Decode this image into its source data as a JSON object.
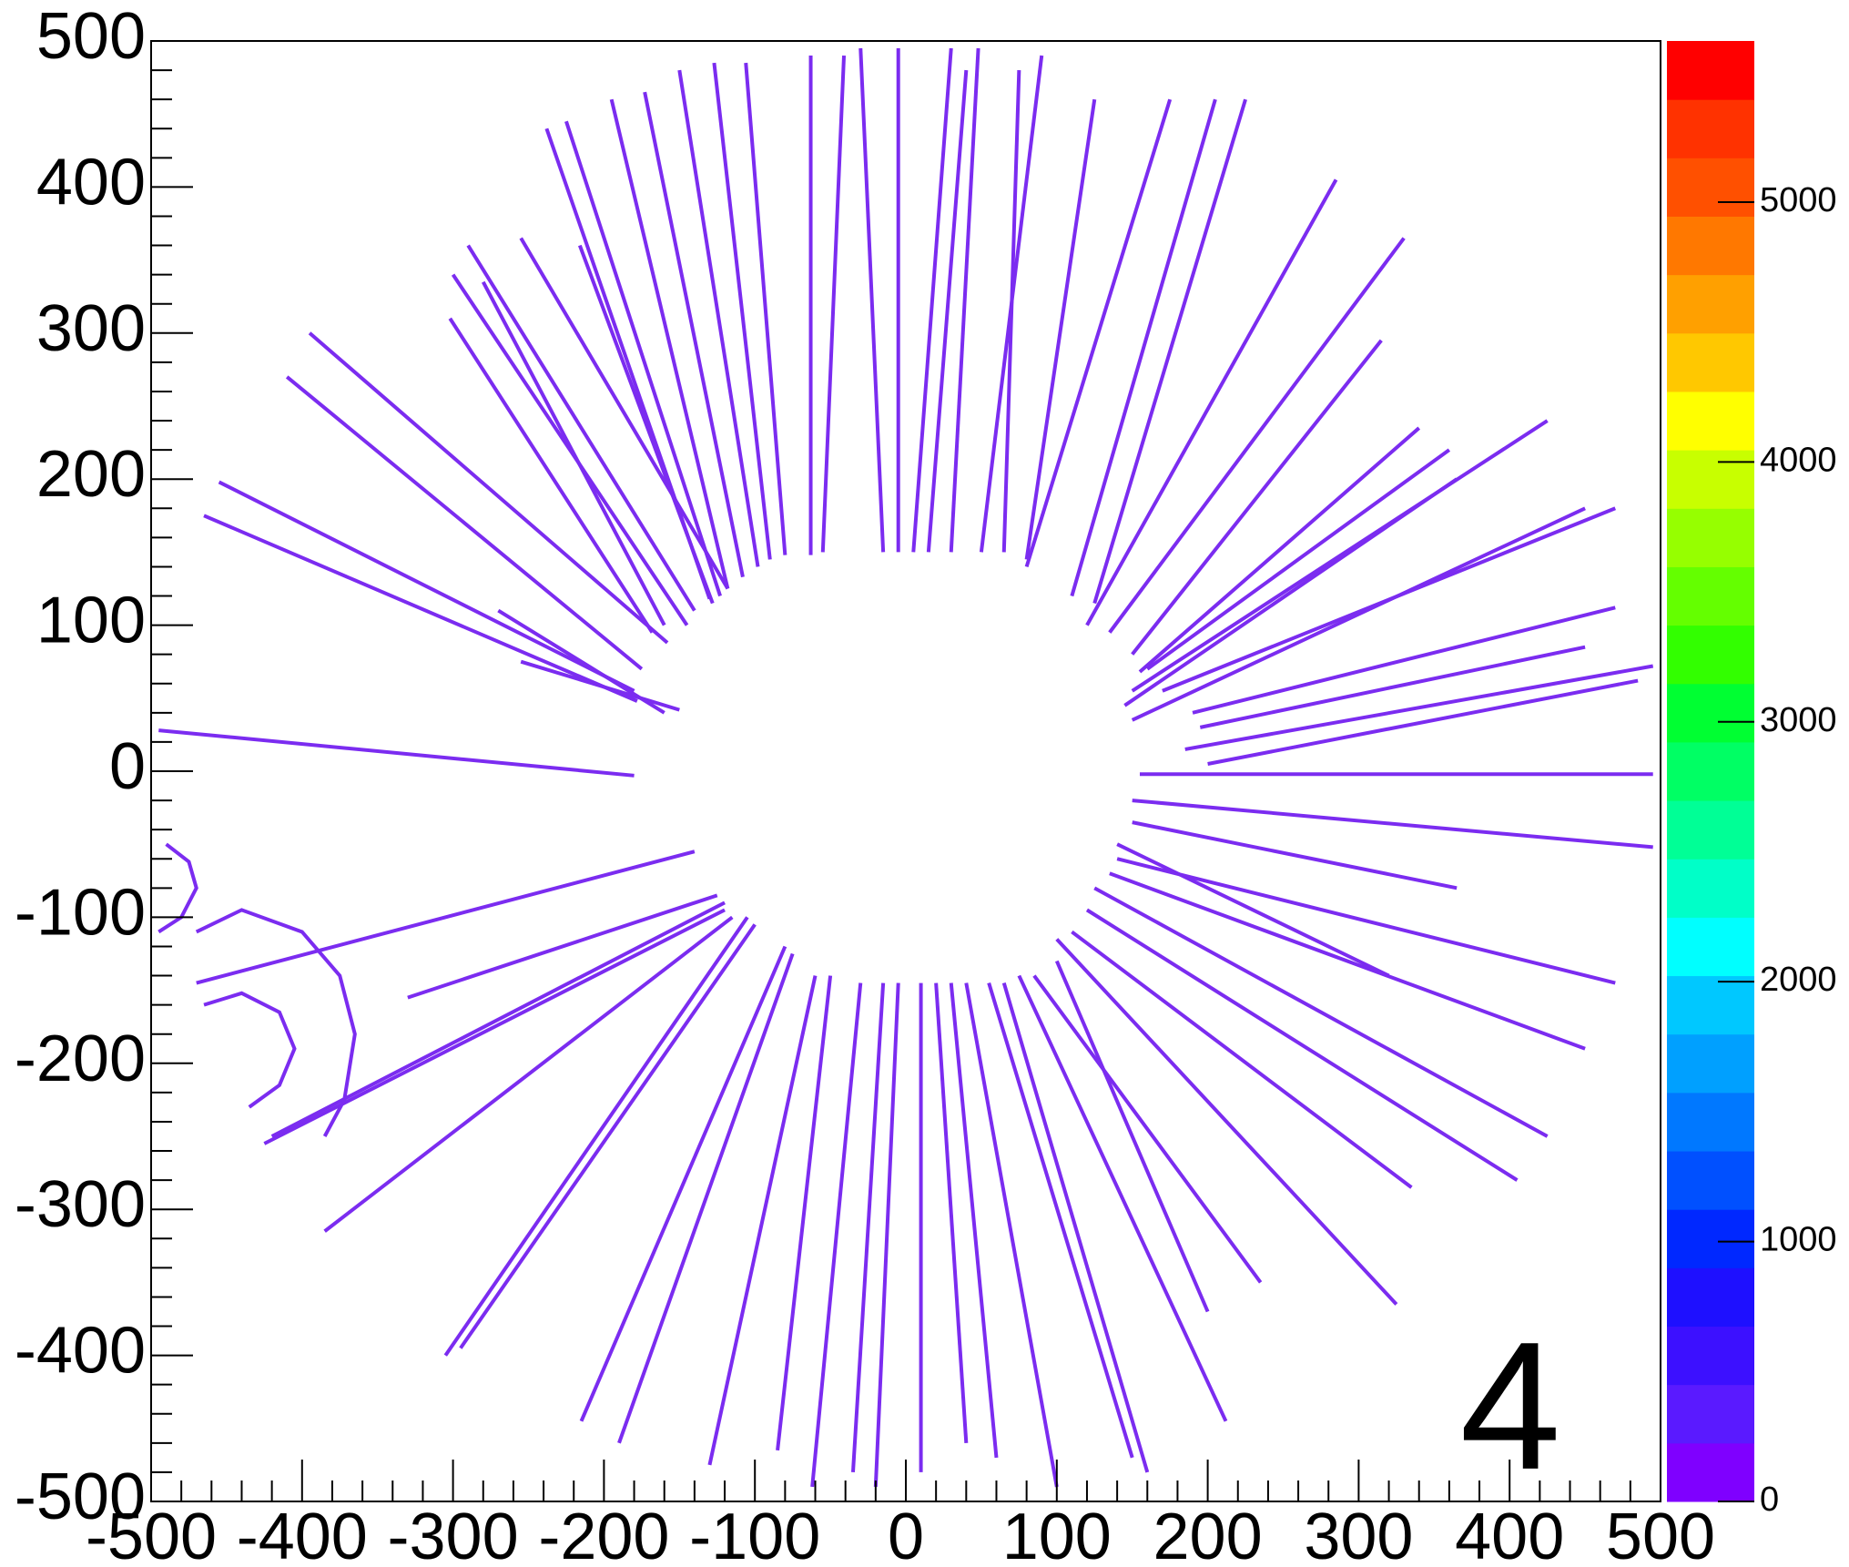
{
  "chart_data": {
    "type": "hist2d",
    "annotation": "4",
    "xlim": [
      -500,
      500
    ],
    "ylim": [
      -500,
      500
    ],
    "xticks": [
      -500,
      -400,
      -300,
      -200,
      -100,
      0,
      100,
      200,
      300,
      400,
      500
    ],
    "yticks": [
      -500,
      -400,
      -300,
      -200,
      -100,
      0,
      100,
      200,
      300,
      400,
      500
    ],
    "zlim": [
      0,
      5620
    ],
    "zticks": [
      0,
      1000,
      2000,
      3000,
      4000,
      5000
    ],
    "color": "#7b2cf0",
    "palette": [
      "#7f00ff",
      "#5a1aff",
      "#3c10ff",
      "#1e10ff",
      "#0028ff",
      "#0050ff",
      "#0078ff",
      "#00a0ff",
      "#00c8ff",
      "#00ffff",
      "#00ffc8",
      "#00ff96",
      "#00ff64",
      "#00ff32",
      "#32ff00",
      "#64ff00",
      "#96ff00",
      "#c8ff00",
      "#ffff00",
      "#ffc800",
      "#ffa000",
      "#ff7800",
      "#ff5000",
      "#ff3200",
      "#ff0000"
    ],
    "tracks": [
      {
        "x": [
          -63,
          -63
        ],
        "y": [
          148,
          490
        ]
      },
      {
        "x": [
          -55,
          -41
        ],
        "y": [
          150,
          490
        ]
      },
      {
        "x": [
          -80,
          -106
        ],
        "y": [
          148,
          485
        ]
      },
      {
        "x": [
          -90,
          -127
        ],
        "y": [
          145,
          485
        ]
      },
      {
        "x": [
          -98,
          -150
        ],
        "y": [
          140,
          480
        ]
      },
      {
        "x": [
          -108,
          -173
        ],
        "y": [
          133,
          465
        ]
      },
      {
        "x": [
          -118,
          -195
        ],
        "y": [
          125,
          460
        ]
      },
      {
        "x": [
          -123,
          -225
        ],
        "y": [
          120,
          445
        ]
      },
      {
        "x": [
          -130,
          -238
        ],
        "y": [
          118,
          440
        ]
      },
      {
        "x": [
          -128,
          -216
        ],
        "y": [
          115,
          360
        ]
      },
      {
        "x": [
          -118,
          -255
        ],
        "y": [
          125,
          365
        ]
      },
      {
        "x": [
          -140,
          -290
        ],
        "y": [
          110,
          360
        ]
      },
      {
        "x": [
          -145,
          -300
        ],
        "y": [
          100,
          340
        ]
      },
      {
        "x": [
          -160,
          -280
        ],
        "y": [
          100,
          335
        ]
      },
      {
        "x": [
          -168,
          -302
        ],
        "y": [
          95,
          310
        ]
      },
      {
        "x": [
          -158,
          -395
        ],
        "y": [
          88,
          300
        ]
      },
      {
        "x": [
          -175,
          -410
        ],
        "y": [
          70,
          270
        ]
      },
      {
        "x": [
          -180,
          -455
        ],
        "y": [
          55,
          198
        ]
      },
      {
        "x": [
          -178,
          -465
        ],
        "y": [
          48,
          175
        ]
      },
      {
        "x": [
          -160,
          -270
        ],
        "y": [
          40,
          110
        ]
      },
      {
        "x": [
          -150,
          -255
        ],
        "y": [
          42,
          75
        ]
      },
      {
        "x": [
          -180,
          -495
        ],
        "y": [
          -3,
          28
        ]
      },
      {
        "x": [
          -15,
          -30
        ],
        "y": [
          150,
          495
        ]
      },
      {
        "x": [
          -5,
          -5
        ],
        "y": [
          150,
          495
        ]
      },
      {
        "x": [
          5,
          30
        ],
        "y": [
          150,
          495
        ]
      },
      {
        "x": [
          15,
          40
        ],
        "y": [
          150,
          480
        ]
      },
      {
        "x": [
          30,
          48
        ],
        "y": [
          150,
          495
        ]
      },
      {
        "x": [
          50,
          90
        ],
        "y": [
          150,
          490
        ]
      },
      {
        "x": [
          65,
          75
        ],
        "y": [
          150,
          480
        ]
      },
      {
        "x": [
          80,
          125
        ],
        "y": [
          145,
          460
        ]
      },
      {
        "x": [
          80,
          175
        ],
        "y": [
          140,
          460
        ]
      },
      {
        "x": [
          110,
          205
        ],
        "y": [
          120,
          460
        ]
      },
      {
        "x": [
          125,
          225
        ],
        "y": [
          115,
          460
        ]
      },
      {
        "x": [
          120,
          285
        ],
        "y": [
          100,
          405
        ]
      },
      {
        "x": [
          135,
          330
        ],
        "y": [
          95,
          365
        ]
      },
      {
        "x": [
          150,
          315
        ],
        "y": [
          80,
          295
        ]
      },
      {
        "x": [
          155,
          340
        ],
        "y": [
          68,
          235
        ]
      },
      {
        "x": [
          145,
          365
        ],
        "y": [
          45,
          200
        ]
      },
      {
        "x": [
          150,
          425
        ],
        "y": [
          55,
          240
        ]
      },
      {
        "x": [
          160,
          360
        ],
        "y": [
          70,
          220
        ]
      },
      {
        "x": [
          150,
          450
        ],
        "y": [
          35,
          180
        ]
      },
      {
        "x": [
          170,
          470
        ],
        "y": [
          55,
          180
        ]
      },
      {
        "x": [
          190,
          470
        ],
        "y": [
          40,
          112
        ]
      },
      {
        "x": [
          195,
          450
        ],
        "y": [
          30,
          85
        ]
      },
      {
        "x": [
          185,
          495
        ],
        "y": [
          15,
          72
        ]
      },
      {
        "x": [
          200,
          485
        ],
        "y": [
          5,
          62
        ]
      },
      {
        "x": [
          155,
          495
        ],
        "y": [
          -2,
          -2
        ]
      },
      {
        "x": [
          150,
          495
        ],
        "y": [
          -20,
          -52
        ]
      },
      {
        "x": [
          150,
          365
        ],
        "y": [
          -35,
          -80
        ]
      },
      {
        "x": [
          140,
          320
        ],
        "y": [
          -50,
          -140
        ]
      },
      {
        "x": [
          140,
          470
        ],
        "y": [
          -60,
          -145
        ]
      },
      {
        "x": [
          135,
          450
        ],
        "y": [
          -70,
          -190
        ]
      },
      {
        "x": [
          125,
          425
        ],
        "y": [
          -80,
          -250
        ]
      },
      {
        "x": [
          120,
          405
        ],
        "y": [
          -95,
          -280
        ]
      },
      {
        "x": [
          110,
          335
        ],
        "y": [
          -110,
          -285
        ]
      },
      {
        "x": [
          100,
          325
        ],
        "y": [
          -115,
          -365
        ]
      },
      {
        "x": [
          100,
          200
        ],
        "y": [
          -130,
          -370
        ]
      },
      {
        "x": [
          85,
          235
        ],
        "y": [
          -140,
          -350
        ]
      },
      {
        "x": [
          75,
          212
        ],
        "y": [
          -140,
          -445
        ]
      },
      {
        "x": [
          65,
          160
        ],
        "y": [
          -145,
          -480
        ]
      },
      {
        "x": [
          55,
          150
        ],
        "y": [
          -145,
          -470
        ]
      },
      {
        "x": [
          40,
          100
        ],
        "y": [
          -145,
          -490
        ]
      },
      {
        "x": [
          30,
          60
        ],
        "y": [
          -145,
          -470
        ]
      },
      {
        "x": [
          20,
          40
        ],
        "y": [
          -145,
          -460
        ]
      },
      {
        "x": [
          10,
          10
        ],
        "y": [
          -145,
          -480
        ]
      },
      {
        "x": [
          -5,
          -20
        ],
        "y": [
          -145,
          -490
        ]
      },
      {
        "x": [
          -15,
          -35
        ],
        "y": [
          -145,
          -480
        ]
      },
      {
        "x": [
          -30,
          -62
        ],
        "y": [
          -145,
          -490
        ]
      },
      {
        "x": [
          -50,
          -85
        ],
        "y": [
          -140,
          -465
        ]
      },
      {
        "x": [
          -60,
          -130
        ],
        "y": [
          -140,
          -475
        ]
      },
      {
        "x": [
          -75,
          -190
        ],
        "y": [
          -125,
          -460
        ]
      },
      {
        "x": [
          -80,
          -215
        ],
        "y": [
          -120,
          -445
        ]
      },
      {
        "x": [
          -100,
          -295
        ],
        "y": [
          -105,
          -395
        ]
      },
      {
        "x": [
          -105,
          -305
        ],
        "y": [
          -100,
          -400
        ]
      },
      {
        "x": [
          -115,
          -385
        ],
        "y": [
          -100,
          -315
        ]
      },
      {
        "x": [
          -120,
          -425
        ],
        "y": [
          -95,
          -255
        ]
      },
      {
        "x": [
          -120,
          -420
        ],
        "y": [
          -90,
          -250
        ]
      },
      {
        "x": [
          -125,
          -330
        ],
        "y": [
          -85,
          -155
        ]
      },
      {
        "x": [
          -140,
          -470
        ],
        "y": [
          -55,
          -145
        ]
      },
      {
        "x": [
          -470,
          -440,
          -400,
          -375,
          -365,
          -372,
          -385
        ],
        "y": [
          -110,
          -95,
          -110,
          -140,
          -180,
          -225,
          -250
        ]
      },
      {
        "x": [
          -465,
          -440,
          -415,
          -405,
          -415,
          -435
        ],
        "y": [
          -160,
          -152,
          -165,
          -190,
          -215,
          -230
        ]
      },
      {
        "x": [
          -490,
          -475,
          -470,
          -480,
          -495
        ],
        "y": [
          -50,
          -62,
          -80,
          -100,
          -110
        ]
      }
    ]
  }
}
